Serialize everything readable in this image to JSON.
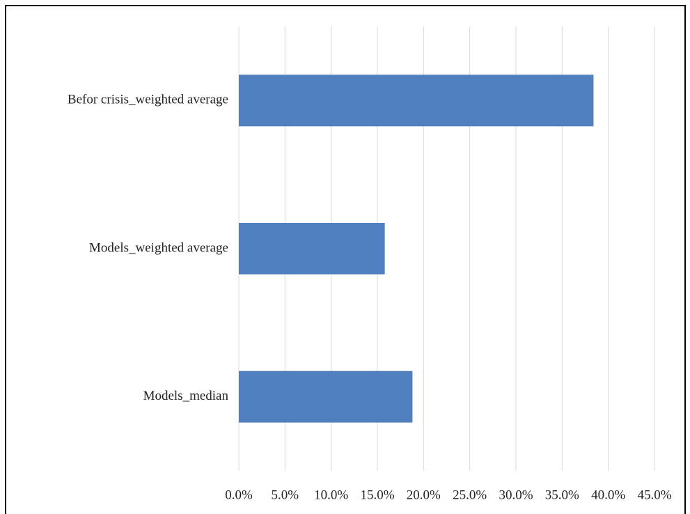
{
  "chart_data": {
    "type": "bar",
    "orientation": "horizontal",
    "categories": [
      "Befor crisis_weighted average",
      "Models_weighted average",
      "Models_median"
    ],
    "values": [
      38.4,
      15.8,
      18.8
    ],
    "color": "#4f7fbe",
    "xlim": [
      0,
      45
    ],
    "xticks": [
      {
        "value": 0,
        "label": "0.0%"
      },
      {
        "value": 5,
        "label": "5.0%"
      },
      {
        "value": 10,
        "label": "10.0%"
      },
      {
        "value": 15,
        "label": "15.0%"
      },
      {
        "value": 20,
        "label": "20.0%"
      },
      {
        "value": 25,
        "label": "25.0%"
      },
      {
        "value": 30,
        "label": "30.0%"
      },
      {
        "value": 35,
        "label": "35.0%"
      },
      {
        "value": 40,
        "label": "40.0%"
      },
      {
        "value": 45,
        "label": "45.0%"
      }
    ],
    "grid": true
  }
}
